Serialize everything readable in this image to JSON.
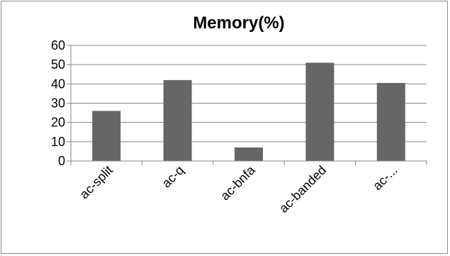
{
  "chart_data": {
    "type": "bar",
    "title": "Memory(%)",
    "categories": [
      "ac-split",
      "ac-q",
      "ac-bnfa",
      "ac-banded",
      "ac-..."
    ],
    "values": [
      26,
      42,
      7,
      51,
      40.5
    ],
    "ylim": [
      0,
      60
    ],
    "yticks": [
      0,
      10,
      20,
      30,
      40,
      50,
      60
    ],
    "xlabel": "",
    "ylabel": "",
    "grid": true,
    "legend": "none",
    "bar_color": "#666666",
    "grid_color": "#868686"
  }
}
